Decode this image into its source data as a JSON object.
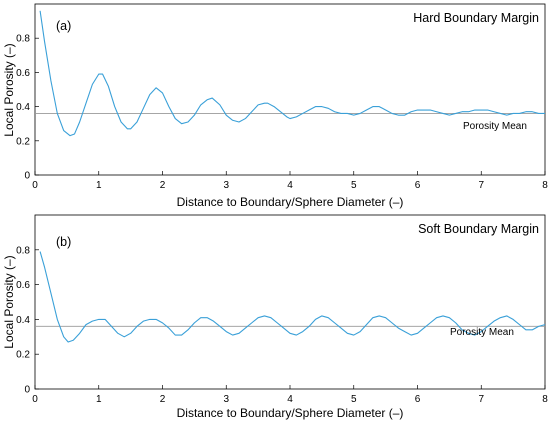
{
  "figure": {
    "y_label": "Local Porosity (–)",
    "x_label": "Distance to Boundary/Sphere Diameter (–)"
  },
  "colors": {
    "series": "#3aa0d8",
    "mean": "#999999",
    "axis": "#000000"
  },
  "chart_data": [
    {
      "type": "line",
      "panel_label": "(a)",
      "title": "Hard Boundary Margin",
      "xlabel": "Distance to Boundary/Sphere Diameter (–)",
      "ylabel": "Local Porosity (–)",
      "xlim": [
        0,
        8
      ],
      "ylim": [
        0,
        1
      ],
      "x_ticks": [
        0,
        1,
        2,
        3,
        4,
        5,
        6,
        7,
        8
      ],
      "y_ticks": [
        0,
        0.2,
        0.4,
        0.6,
        0.8
      ],
      "grid": false,
      "mean_line": {
        "label": "Porosity Mean",
        "value": 0.36
      },
      "series": [
        {
          "x": [
            0.08,
            0.15,
            0.25,
            0.35,
            0.45,
            0.55,
            0.62,
            0.7,
            0.8,
            0.9,
            1.0,
            1.06,
            1.15,
            1.25,
            1.35,
            1.45,
            1.5,
            1.6,
            1.7,
            1.8,
            1.9,
            2.0,
            2.1,
            2.2,
            2.3,
            2.4,
            2.5,
            2.6,
            2.7,
            2.78,
            2.9,
            3.0,
            3.1,
            3.2,
            3.3,
            3.4,
            3.5,
            3.6,
            3.65,
            3.75,
            3.85,
            3.95,
            4.0,
            4.1,
            4.2,
            4.3,
            4.4,
            4.5,
            4.6,
            4.7,
            4.8,
            4.9,
            5.0,
            5.1,
            5.2,
            5.3,
            5.4,
            5.5,
            5.6,
            5.7,
            5.8,
            5.9,
            6.0,
            6.1,
            6.2,
            6.3,
            6.4,
            6.5,
            6.6,
            6.7,
            6.8,
            6.9,
            7.0,
            7.1,
            7.2,
            7.3,
            7.4,
            7.5,
            7.6,
            7.7,
            7.8,
            7.9,
            8.0
          ],
          "y": [
            0.96,
            0.78,
            0.55,
            0.36,
            0.26,
            0.23,
            0.24,
            0.31,
            0.42,
            0.53,
            0.59,
            0.59,
            0.52,
            0.4,
            0.31,
            0.27,
            0.27,
            0.31,
            0.39,
            0.47,
            0.51,
            0.48,
            0.4,
            0.33,
            0.3,
            0.31,
            0.35,
            0.41,
            0.44,
            0.45,
            0.41,
            0.35,
            0.32,
            0.31,
            0.33,
            0.37,
            0.41,
            0.42,
            0.42,
            0.4,
            0.37,
            0.34,
            0.33,
            0.34,
            0.36,
            0.38,
            0.4,
            0.4,
            0.39,
            0.37,
            0.36,
            0.36,
            0.35,
            0.36,
            0.38,
            0.4,
            0.4,
            0.38,
            0.36,
            0.35,
            0.35,
            0.37,
            0.38,
            0.38,
            0.38,
            0.37,
            0.36,
            0.35,
            0.36,
            0.37,
            0.37,
            0.38,
            0.38,
            0.38,
            0.37,
            0.36,
            0.35,
            0.36,
            0.36,
            0.37,
            0.37,
            0.36,
            0.36
          ]
        }
      ]
    },
    {
      "type": "line",
      "panel_label": "(b)",
      "title": "Soft Boundary Margin",
      "xlabel": "Distance to Boundary/Sphere Diameter (–)",
      "ylabel": "Local Porosity (–)",
      "xlim": [
        0,
        8
      ],
      "ylim": [
        0,
        1
      ],
      "x_ticks": [
        0,
        1,
        2,
        3,
        4,
        5,
        6,
        7,
        8
      ],
      "y_ticks": [
        0,
        0.2,
        0.4,
        0.6,
        0.8
      ],
      "grid": false,
      "mean_line": {
        "label": "Porosity Mean",
        "value": 0.36
      },
      "series": [
        {
          "x": [
            0.08,
            0.15,
            0.25,
            0.35,
            0.45,
            0.52,
            0.6,
            0.7,
            0.8,
            0.9,
            1.0,
            1.1,
            1.2,
            1.3,
            1.4,
            1.5,
            1.6,
            1.7,
            1.8,
            1.9,
            2.0,
            2.1,
            2.2,
            2.3,
            2.4,
            2.5,
            2.6,
            2.7,
            2.8,
            2.9,
            3.0,
            3.1,
            3.2,
            3.3,
            3.4,
            3.5,
            3.6,
            3.7,
            3.8,
            3.9,
            4.0,
            4.1,
            4.2,
            4.3,
            4.4,
            4.5,
            4.6,
            4.7,
            4.8,
            4.9,
            5.0,
            5.1,
            5.2,
            5.3,
            5.4,
            5.5,
            5.6,
            5.7,
            5.8,
            5.9,
            6.0,
            6.1,
            6.2,
            6.3,
            6.4,
            6.5,
            6.6,
            6.7,
            6.8,
            6.9,
            7.0,
            7.1,
            7.2,
            7.3,
            7.4,
            7.5,
            7.6,
            7.7,
            7.8,
            7.9,
            8.0
          ],
          "y": [
            0.79,
            0.7,
            0.55,
            0.4,
            0.3,
            0.27,
            0.28,
            0.32,
            0.37,
            0.39,
            0.4,
            0.4,
            0.36,
            0.32,
            0.3,
            0.32,
            0.36,
            0.39,
            0.4,
            0.4,
            0.38,
            0.35,
            0.31,
            0.31,
            0.34,
            0.38,
            0.41,
            0.41,
            0.39,
            0.36,
            0.33,
            0.31,
            0.32,
            0.35,
            0.38,
            0.41,
            0.42,
            0.41,
            0.38,
            0.35,
            0.32,
            0.31,
            0.33,
            0.36,
            0.4,
            0.42,
            0.41,
            0.38,
            0.35,
            0.32,
            0.31,
            0.33,
            0.37,
            0.41,
            0.42,
            0.41,
            0.38,
            0.35,
            0.33,
            0.31,
            0.32,
            0.35,
            0.38,
            0.41,
            0.42,
            0.41,
            0.38,
            0.34,
            0.32,
            0.31,
            0.33,
            0.36,
            0.39,
            0.41,
            0.42,
            0.4,
            0.37,
            0.34,
            0.34,
            0.36,
            0.37
          ]
        }
      ]
    }
  ]
}
